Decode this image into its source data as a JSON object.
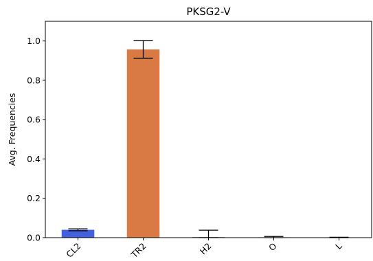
{
  "chart_data": {
    "type": "bar",
    "title": "PKSG2-V",
    "xlabel": "",
    "ylabel": "Avg. Frequencies",
    "categories": [
      "CL2",
      "TR2",
      "H2",
      "O",
      "L"
    ],
    "values": [
      0.04,
      0.957,
      0.003,
      0.002,
      0.001
    ],
    "errors": [
      0.005,
      0.045,
      0.035,
      0.004,
      0.001
    ],
    "colors": [
      "#4361dd",
      "#d97a45",
      "#5a7fa0",
      "#5a7fa0",
      "#5a7fa0"
    ],
    "ylim": [
      0,
      1.1
    ],
    "yticks": [
      0.0,
      0.2,
      0.4,
      0.6,
      0.8,
      1.0
    ],
    "ytick_labels": [
      "0.0",
      "0.2",
      "0.4",
      "0.6",
      "0.8",
      "1.0"
    ],
    "grid": false,
    "legend": "none"
  }
}
